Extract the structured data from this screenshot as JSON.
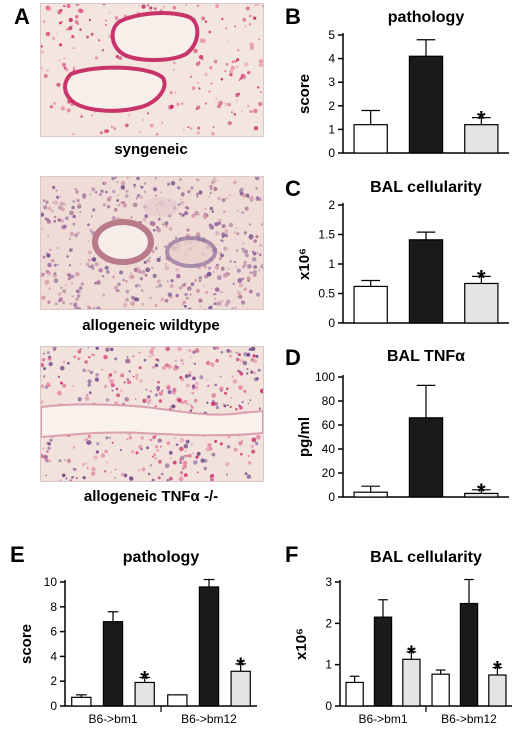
{
  "panels": {
    "A": {
      "letter": "A",
      "captions": [
        "syngeneic",
        "allogeneic wildtype",
        "allogeneic TNFα -/-"
      ]
    },
    "B": "B",
    "C": "C",
    "D": "D",
    "E": "E",
    "F": "F"
  },
  "chart_data": [
    {
      "panel": "B",
      "type": "bar",
      "title": "pathology",
      "ylabel": "score",
      "ylim": [
        0,
        5
      ],
      "yticks": [
        0,
        1,
        2,
        3,
        4,
        5
      ],
      "categories": [
        "",
        "",
        ""
      ],
      "values": [
        1.2,
        4.1,
        1.2
      ],
      "errors": [
        0.6,
        0.7,
        0.3
      ],
      "fills": [
        "#ffffff",
        "#1a1a1a",
        "#e4e4e4"
      ],
      "significant": [
        false,
        false,
        true
      ]
    },
    {
      "panel": "C",
      "type": "bar",
      "title": "BAL cellularity",
      "ylabel": "x10⁶",
      "ylim": [
        0,
        2
      ],
      "yticks": [
        0,
        0.5,
        1,
        1.5,
        2
      ],
      "categories": [
        "",
        "",
        ""
      ],
      "values": [
        0.62,
        1.41,
        0.67
      ],
      "errors": [
        0.1,
        0.13,
        0.12
      ],
      "fills": [
        "#ffffff",
        "#1a1a1a",
        "#e4e4e4"
      ],
      "significant": [
        false,
        false,
        true
      ]
    },
    {
      "panel": "D",
      "type": "bar",
      "title": "BAL TNFα",
      "ylabel": "pg/ml",
      "ylim": [
        0,
        100
      ],
      "yticks": [
        0,
        20,
        40,
        60,
        80,
        100
      ],
      "categories": [
        "",
        "",
        ""
      ],
      "values": [
        4,
        66,
        3
      ],
      "errors": [
        5,
        27,
        3
      ],
      "fills": [
        "#ffffff",
        "#1a1a1a",
        "#e4e4e4"
      ],
      "significant": [
        false,
        false,
        true
      ]
    },
    {
      "panel": "E",
      "type": "bar",
      "title": "pathology",
      "ylabel": "score",
      "ylim": [
        0,
        10
      ],
      "yticks": [
        0,
        2,
        4,
        6,
        8,
        10
      ],
      "groups": [
        "B6->bm1",
        "B6->bm12"
      ],
      "values": [
        [
          0.7,
          6.8,
          1.9
        ],
        [
          0.9,
          9.6,
          2.8
        ]
      ],
      "errors": [
        [
          0.2,
          0.8,
          0.4
        ],
        [
          0,
          0.6,
          0.6
        ]
      ],
      "fills": [
        "#ffffff",
        "#1a1a1a",
        "#e4e4e4"
      ],
      "significant": [
        [
          false,
          false,
          true
        ],
        [
          false,
          false,
          true
        ]
      ]
    },
    {
      "panel": "F",
      "type": "bar",
      "title": "BAL cellularity",
      "ylabel": "x10⁶",
      "ylim": [
        0,
        3
      ],
      "yticks": [
        0,
        1,
        2,
        3
      ],
      "groups": [
        "B6->bm1",
        "B6->bm12"
      ],
      "values": [
        [
          0.57,
          2.15,
          1.13
        ],
        [
          0.77,
          2.48,
          0.75
        ]
      ],
      "errors": [
        [
          0.15,
          0.42,
          0.18
        ],
        [
          0.1,
          0.58,
          0.18
        ]
      ],
      "fills": [
        "#ffffff",
        "#1a1a1a",
        "#e4e4e4"
      ],
      "significant": [
        [
          false,
          false,
          true
        ],
        [
          false,
          false,
          true
        ]
      ]
    }
  ]
}
